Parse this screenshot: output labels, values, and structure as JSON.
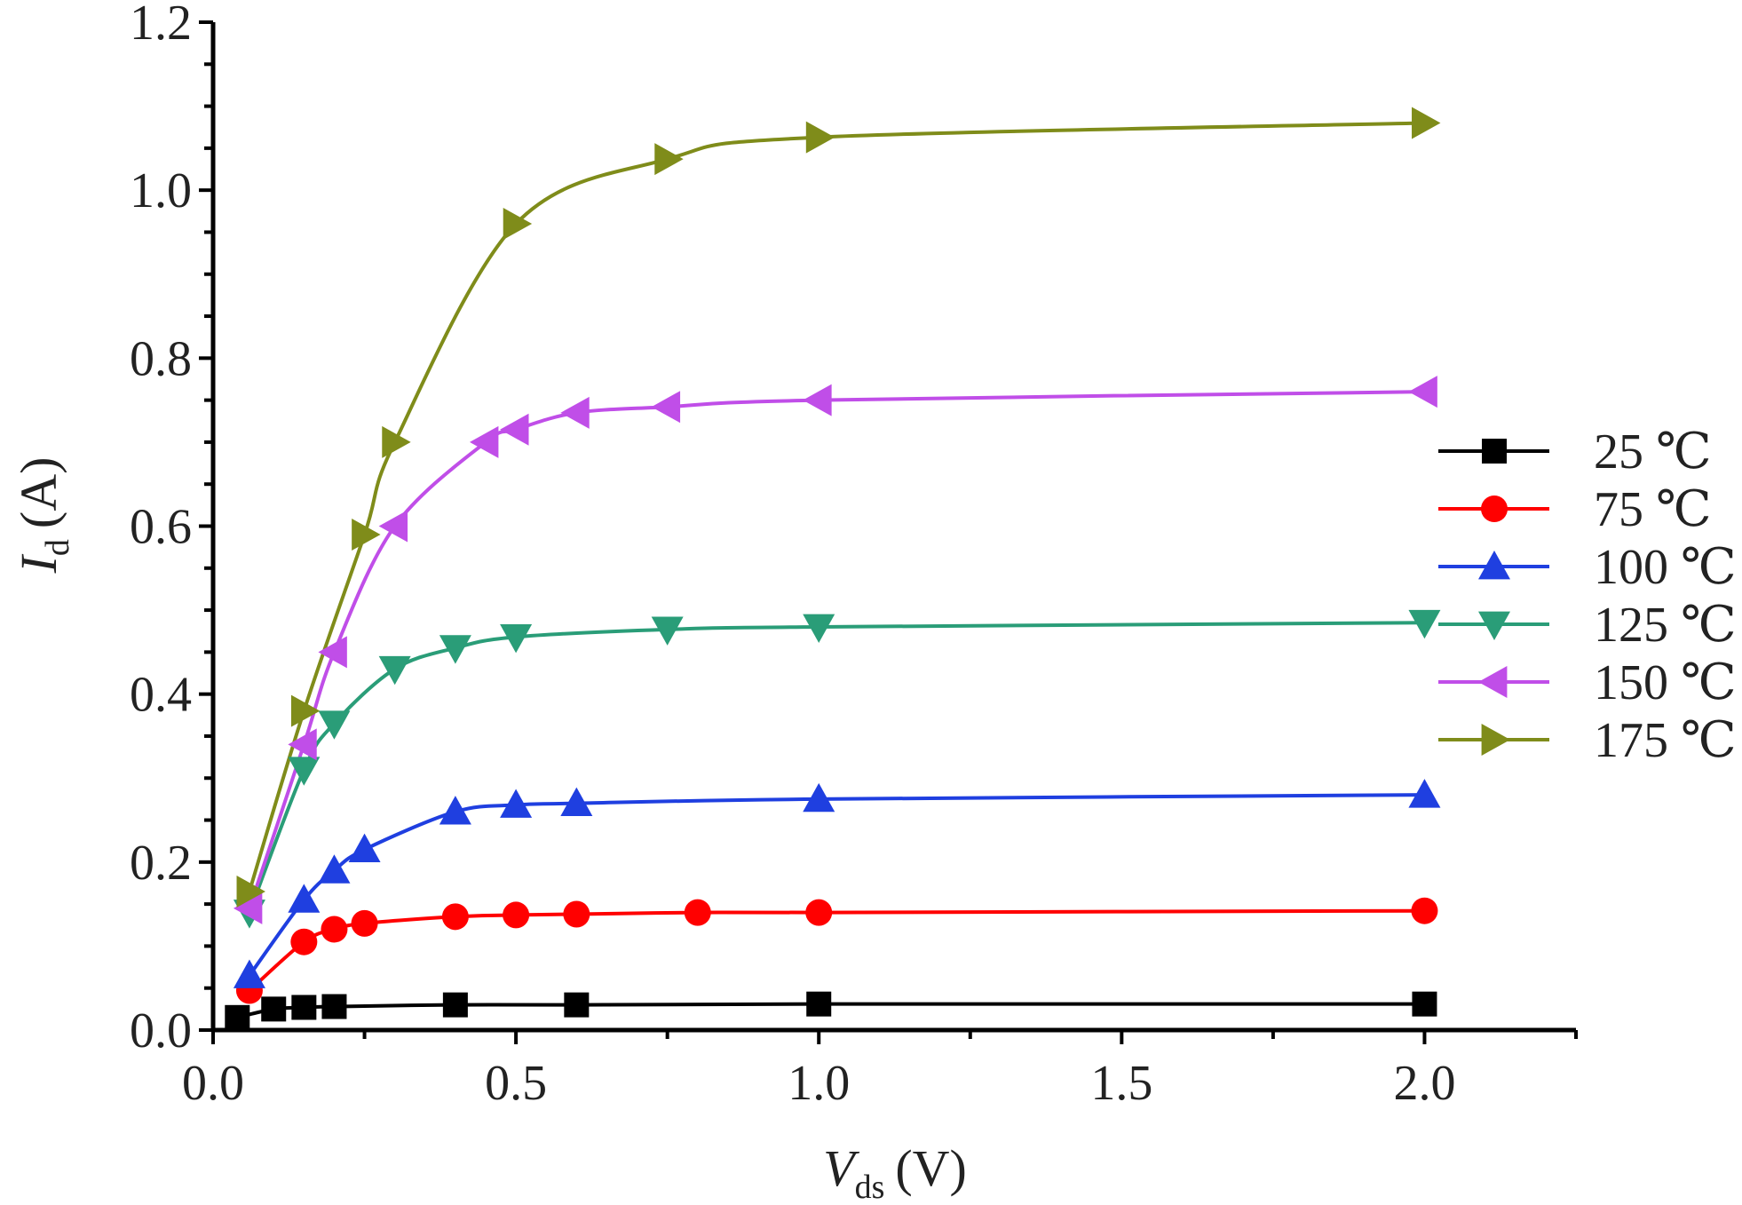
{
  "chart_data": {
    "type": "line",
    "title": "",
    "xlabel": {
      "symbol": "V",
      "subscript": "ds",
      "unit": "(V)"
    },
    "ylabel": {
      "symbol": "I",
      "subscript": "d",
      "unit": "(A)"
    },
    "xlim": [
      0,
      2.25
    ],
    "ylim": [
      0,
      1.2
    ],
    "x_ticks": [
      "0.0",
      "0.5",
      "1.0",
      "1.5",
      "2.0"
    ],
    "y_ticks": [
      "0.0",
      "0.2",
      "0.4",
      "0.6",
      "0.8",
      "1.0",
      "1.2"
    ],
    "grid": false,
    "legend_position": "right",
    "series": [
      {
        "name": "25 ℃",
        "color": "#000000",
        "marker": "square",
        "x": [
          0.04,
          0.1,
          0.15,
          0.2,
          0.4,
          0.6,
          1.0,
          2.0
        ],
        "y": [
          0.015,
          0.025,
          0.027,
          0.028,
          0.03,
          0.03,
          0.031,
          0.031
        ]
      },
      {
        "name": "75 ℃",
        "color": "#ff0000",
        "marker": "circle",
        "x": [
          0.06,
          0.15,
          0.2,
          0.25,
          0.4,
          0.5,
          0.6,
          0.8,
          1.0,
          2.0
        ],
        "y": [
          0.047,
          0.105,
          0.12,
          0.127,
          0.135,
          0.137,
          0.138,
          0.14,
          0.14,
          0.142
        ]
      },
      {
        "name": "100 ℃",
        "color": "#1f3fe0",
        "marker": "triangle-up",
        "x": [
          0.06,
          0.15,
          0.2,
          0.25,
          0.4,
          0.5,
          0.6,
          1.0,
          2.0
        ],
        "y": [
          0.065,
          0.155,
          0.19,
          0.215,
          0.26,
          0.268,
          0.27,
          0.275,
          0.28
        ]
      },
      {
        "name": "125 ℃",
        "color": "#2a9d78",
        "marker": "triangle-down",
        "x": [
          0.06,
          0.15,
          0.2,
          0.3,
          0.4,
          0.5,
          0.75,
          1.0,
          2.0
        ],
        "y": [
          0.14,
          0.31,
          0.365,
          0.43,
          0.455,
          0.468,
          0.477,
          0.48,
          0.485
        ]
      },
      {
        "name": "150 ℃",
        "color": "#c04ee8",
        "marker": "triangle-left",
        "x": [
          0.06,
          0.15,
          0.2,
          0.3,
          0.45,
          0.5,
          0.6,
          0.75,
          1.0,
          2.0
        ],
        "y": [
          0.145,
          0.34,
          0.45,
          0.6,
          0.7,
          0.715,
          0.735,
          0.742,
          0.75,
          0.76
        ]
      },
      {
        "name": "175 ℃",
        "color": "#7f8c1a",
        "marker": "triangle-right",
        "x": [
          0.06,
          0.15,
          0.25,
          0.3,
          0.5,
          0.75,
          1.0,
          2.0
        ],
        "y": [
          0.165,
          0.38,
          0.59,
          0.7,
          0.96,
          1.037,
          1.063,
          1.08
        ]
      }
    ]
  }
}
